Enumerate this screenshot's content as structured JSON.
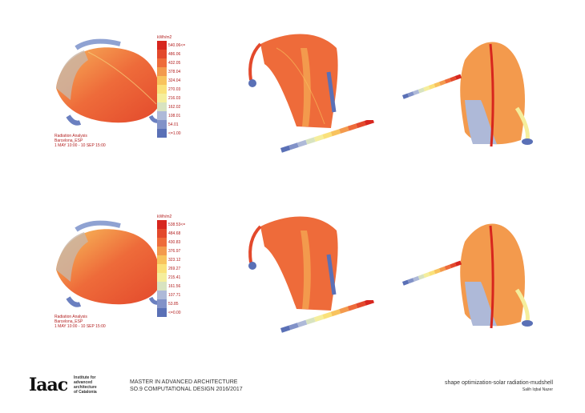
{
  "legend_colors": [
    "#d7261e",
    "#e3492c",
    "#ee6b3a",
    "#f39a4d",
    "#f8c35d",
    "#fae17a",
    "#f5ee9c",
    "#d8e3c0",
    "#aeb9d8",
    "#8292c8",
    "#5a70b6"
  ],
  "analysis_top": {
    "unit": "kWh/m2",
    "values": [
      "540.06<=",
      "486.06",
      "432.05",
      "378.04",
      "324.04",
      "270.03",
      "216.03",
      "162.02",
      "108.01",
      "54.01",
      "<=1.00"
    ],
    "caption": [
      "Radiation Analysis",
      "Barcelona_ESP",
      "1 MAY 10:00 - 10 SEP 15:00"
    ]
  },
  "analysis_bottom": {
    "unit": "kWh/m2",
    "values": [
      "538.53<=",
      "484.68",
      "430.83",
      "376.97",
      "323.12",
      "269.27",
      "215.41",
      "161.56",
      "107.71",
      "53.85",
      "<=0.00"
    ],
    "caption": [
      "Radiation Analysis",
      "Barcelona_ESP",
      "1 MAY 10:00 - 10 SEP 15:00"
    ]
  },
  "footer": {
    "logo": "Iaac",
    "institute": [
      "Institute for",
      "advanced",
      "architecture",
      "of Catalonia"
    ],
    "program": "MASTER IN ADVANCED ARCHITECTURE",
    "course": "SO.9 COMPUTATIONAL DESIGN 2016/2017",
    "project": "shape optimization-solar radiation-mudshell",
    "author": "Salih Iqbal Nazer"
  }
}
